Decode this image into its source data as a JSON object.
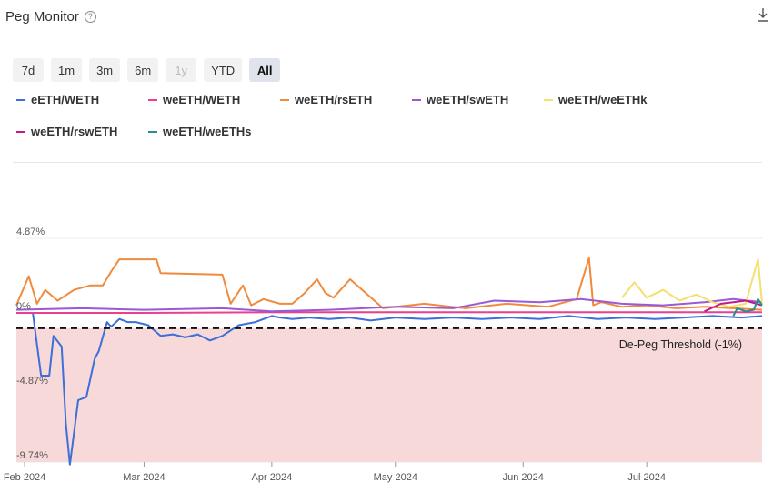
{
  "header": {
    "title": "Peg Monitor",
    "help_icon": "question-circle-icon",
    "download_icon": "download-icon"
  },
  "ranges": [
    {
      "label": "7d",
      "state": "normal"
    },
    {
      "label": "1m",
      "state": "normal"
    },
    {
      "label": "3m",
      "state": "normal"
    },
    {
      "label": "6m",
      "state": "normal"
    },
    {
      "label": "1y",
      "state": "disabled"
    },
    {
      "label": "YTD",
      "state": "normal"
    },
    {
      "label": "All",
      "state": "active"
    }
  ],
  "chart_data": {
    "type": "line",
    "x_ticks": [
      "Feb 2024",
      "Mar 2024",
      "Apr 2024",
      "May 2024",
      "Jun 2024",
      "Jul 2024"
    ],
    "y_ticks": [
      "4.87%",
      "0%",
      "-4.87%",
      "-9.74%"
    ],
    "ylim": [
      -9.74,
      4.87
    ],
    "xlim": [
      "2024-01-30",
      "2024-07-29"
    ],
    "threshold": {
      "value": -1,
      "label": "De-Peg Threshold (-1%)",
      "zone_color": "#f8d9d9"
    },
    "series": [
      {
        "name": "eETH/WETH",
        "color": "#3c6fd8",
        "x": [
          "2024-02-03",
          "2024-02-05",
          "2024-02-07",
          "2024-02-08",
          "2024-02-10",
          "2024-02-11",
          "2024-02-12",
          "2024-02-14",
          "2024-02-16",
          "2024-02-18",
          "2024-02-19",
          "2024-02-21",
          "2024-02-22",
          "2024-02-24",
          "2024-02-26",
          "2024-02-28",
          "2024-03-02",
          "2024-03-05",
          "2024-03-08",
          "2024-03-11",
          "2024-03-14",
          "2024-03-17",
          "2024-03-20",
          "2024-03-24",
          "2024-03-28",
          "2024-04-01",
          "2024-04-03",
          "2024-04-06",
          "2024-04-10",
          "2024-04-15",
          "2024-04-20",
          "2024-04-25",
          "2024-05-01",
          "2024-05-08",
          "2024-05-15",
          "2024-05-22",
          "2024-05-29",
          "2024-06-05",
          "2024-06-12",
          "2024-06-19",
          "2024-06-26",
          "2024-07-03",
          "2024-07-10",
          "2024-07-17",
          "2024-07-24",
          "2024-07-29"
        ],
        "values": [
          0,
          -4.1,
          -4.1,
          -1.5,
          -2.2,
          -7.2,
          -9.9,
          -5.7,
          -5.5,
          -3.0,
          -2.5,
          -0.6,
          -0.9,
          -0.4,
          -0.6,
          -0.6,
          -0.8,
          -1.5,
          -1.4,
          -1.6,
          -1.4,
          -1.8,
          -1.5,
          -0.8,
          -0.6,
          -0.2,
          -0.3,
          -0.4,
          -0.3,
          -0.4,
          -0.3,
          -0.5,
          -0.3,
          -0.4,
          -0.3,
          -0.4,
          -0.3,
          -0.4,
          -0.2,
          -0.4,
          -0.3,
          -0.4,
          -0.3,
          -0.2,
          -0.3,
          -0.2
        ]
      },
      {
        "name": "weETH/WETH",
        "color": "#e9408f",
        "x": [
          "2024-01-30",
          "2024-03-01",
          "2024-04-01",
          "2024-05-01",
          "2024-06-01",
          "2024-07-01",
          "2024-07-29"
        ],
        "values": [
          0,
          0,
          0.05,
          0.05,
          0.05,
          0.05,
          0.05
        ]
      },
      {
        "name": "weETH/rsETH",
        "color": "#f08a3c",
        "x": [
          "2024-01-30",
          "2024-02-02",
          "2024-02-04",
          "2024-02-06",
          "2024-02-09",
          "2024-02-13",
          "2024-02-17",
          "2024-02-20",
          "2024-02-22",
          "2024-02-24",
          "2024-02-25",
          "2024-03-04",
          "2024-03-05",
          "2024-03-20",
          "2024-03-22",
          "2024-03-25",
          "2024-03-27",
          "2024-03-30",
          "2024-04-03",
          "2024-04-06",
          "2024-04-09",
          "2024-04-12",
          "2024-04-14",
          "2024-04-16",
          "2024-04-20",
          "2024-04-28",
          "2024-05-08",
          "2024-05-18",
          "2024-05-28",
          "2024-06-07",
          "2024-06-14",
          "2024-06-17",
          "2024-06-18",
          "2024-06-20",
          "2024-06-25",
          "2024-07-01",
          "2024-07-08",
          "2024-07-15",
          "2024-07-22",
          "2024-07-29"
        ],
        "values": [
          0.5,
          2.4,
          0.6,
          1.5,
          0.8,
          1.5,
          1.8,
          1.8,
          2.7,
          3.5,
          3.5,
          3.5,
          2.6,
          2.5,
          0.6,
          1.8,
          0.5,
          0.9,
          0.6,
          0.6,
          1.3,
          2.2,
          1.3,
          1.0,
          2.2,
          0.3,
          0.6,
          0.3,
          0.6,
          0.4,
          0.9,
          3.6,
          0.5,
          0.7,
          0.4,
          0.5,
          0.3,
          0.4,
          0.3,
          0.2
        ]
      },
      {
        "name": "weETH/swETH",
        "color": "#9b59d6",
        "x": [
          "2024-01-30",
          "2024-02-15",
          "2024-03-01",
          "2024-03-20",
          "2024-04-01",
          "2024-04-15",
          "2024-05-01",
          "2024-05-15",
          "2024-05-25",
          "2024-06-05",
          "2024-06-15",
          "2024-06-25",
          "2024-07-05",
          "2024-07-15",
          "2024-07-22",
          "2024-07-29"
        ],
        "values": [
          0.2,
          0.3,
          0.2,
          0.3,
          0.1,
          0.2,
          0.4,
          0.3,
          0.8,
          0.7,
          0.9,
          0.6,
          0.5,
          0.7,
          0.9,
          0.7
        ]
      },
      {
        "name": "weETH/weETHk",
        "color": "#f5df6e",
        "x": [
          "2024-06-25",
          "2024-06-28",
          "2024-07-01",
          "2024-07-05",
          "2024-07-09",
          "2024-07-13",
          "2024-07-17",
          "2024-07-21",
          "2024-07-25",
          "2024-07-28",
          "2024-07-29"
        ],
        "values": [
          1.0,
          2.0,
          1.0,
          1.5,
          0.8,
          1.2,
          0.7,
          0.4,
          0.6,
          3.5,
          0.6
        ]
      },
      {
        "name": "weETH/rswETH",
        "color": "#c2188b",
        "x": [
          "2024-07-15",
          "2024-07-19",
          "2024-07-22",
          "2024-07-25",
          "2024-07-29"
        ],
        "values": [
          0.1,
          0.6,
          0.7,
          0.8,
          0.5
        ]
      },
      {
        "name": "weETH/weETHs",
        "color": "#2a8f8f",
        "x": [
          "2024-07-22",
          "2024-07-23",
          "2024-07-25",
          "2024-07-27",
          "2024-07-28",
          "2024-07-29"
        ],
        "values": [
          -0.2,
          0.3,
          0.1,
          0.2,
          0.9,
          0.5
        ]
      }
    ]
  }
}
